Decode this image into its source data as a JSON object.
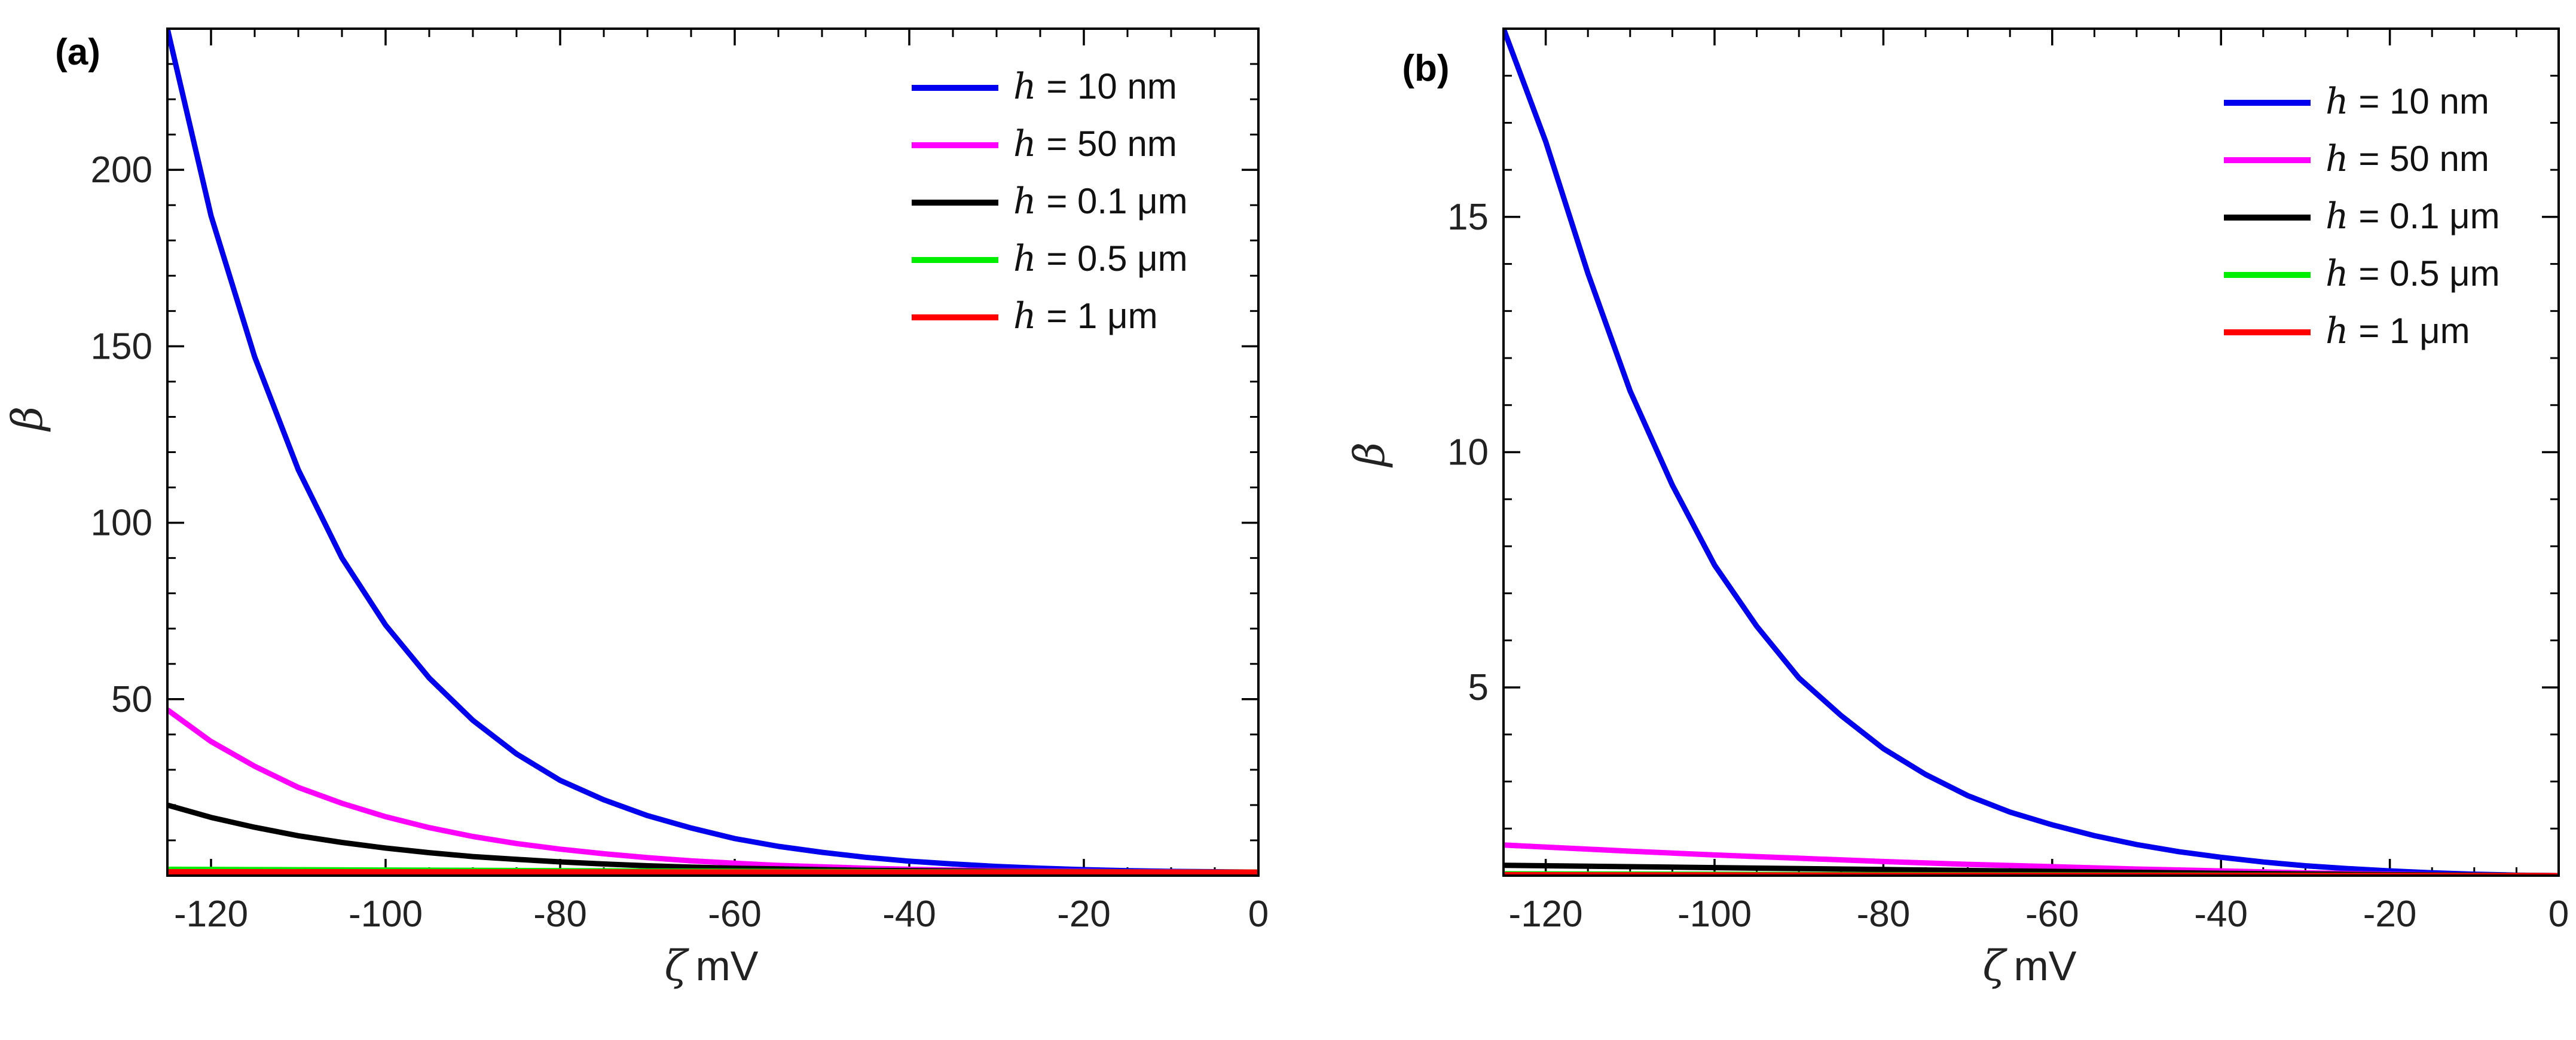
{
  "chart_data": [
    {
      "type": "line",
      "panel_label": "(a)",
      "xlabel": "mV",
      "xlabel_symbol": "ζ",
      "ylabel": "β",
      "xlim": [
        -125,
        0
      ],
      "ylim": [
        0,
        240
      ],
      "xticks": [
        -120,
        -100,
        -80,
        -60,
        -40,
        -20,
        0
      ],
      "yticks": [
        50,
        100,
        150,
        200
      ],
      "legend": "top-right",
      "series": [
        {
          "name": "h = 10 nm",
          "symbol": "h",
          "rest": " = 10 nm",
          "color": "#0000ee",
          "x": [
            -125,
            -120,
            -115,
            -110,
            -105,
            -100,
            -95,
            -90,
            -85,
            -80,
            -75,
            -70,
            -65,
            -60,
            -55,
            -50,
            -45,
            -40,
            -35,
            -30,
            -25,
            -20,
            -15,
            -10,
            -5,
            0
          ],
          "y": [
            240,
            187,
            147,
            115,
            90,
            71,
            56,
            44,
            34.5,
            27,
            21.5,
            17,
            13.5,
            10.5,
            8.3,
            6.6,
            5.2,
            4.1,
            3.3,
            2.6,
            2.1,
            1.7,
            1.4,
            1.2,
            1.1,
            1.0
          ]
        },
        {
          "name": "h = 50 nm",
          "symbol": "h",
          "rest": " = 50 nm",
          "color": "#ff00ff",
          "x": [
            -125,
            -120,
            -115,
            -110,
            -105,
            -100,
            -95,
            -90,
            -85,
            -80,
            -75,
            -70,
            -65,
            -60,
            -55,
            -50,
            -45,
            -40,
            -35,
            -30,
            -25,
            -20,
            -15,
            -10,
            -5,
            0
          ],
          "y": [
            47,
            38,
            31,
            25,
            20.5,
            16.7,
            13.6,
            11.1,
            9.1,
            7.5,
            6.2,
            5.1,
            4.2,
            3.5,
            2.9,
            2.5,
            2.1,
            1.8,
            1.6,
            1.4,
            1.3,
            1.2,
            1.1,
            1.05,
            1.0,
            1.0
          ]
        },
        {
          "name": "h = 0.1 μm",
          "symbol": "h",
          "rest": " = 0.1 μm",
          "color": "#000000",
          "x": [
            -125,
            -120,
            -115,
            -110,
            -105,
            -100,
            -95,
            -90,
            -85,
            -80,
            -75,
            -70,
            -65,
            -60,
            -55,
            -50,
            -45,
            -40,
            -35,
            -30,
            -25,
            -20,
            -15,
            -10,
            -5,
            0
          ],
          "y": [
            20,
            16.5,
            13.7,
            11.3,
            9.4,
            7.8,
            6.5,
            5.4,
            4.6,
            3.9,
            3.3,
            2.8,
            2.4,
            2.1,
            1.9,
            1.7,
            1.5,
            1.4,
            1.3,
            1.2,
            1.15,
            1.1,
            1.05,
            1.0,
            1.0,
            1.0
          ]
        },
        {
          "name": "h = 0.5 μm",
          "symbol": "h",
          "rest": " = 0.5 μm",
          "color": "#00ee00",
          "x": [
            -125,
            -100,
            -80,
            -60,
            -40,
            -20,
            0
          ],
          "y": [
            1.8,
            1.6,
            1.4,
            1.25,
            1.1,
            1.05,
            1.0
          ]
        },
        {
          "name": "h = 1 μm",
          "symbol": "h",
          "rest": " = 1 μm",
          "color": "#ff0000",
          "x": [
            -125,
            -100,
            -80,
            -60,
            -40,
            -20,
            0
          ],
          "y": [
            1.1,
            1.08,
            1.06,
            1.04,
            1.02,
            1.01,
            1.0
          ]
        }
      ]
    },
    {
      "type": "line",
      "panel_label": "(b)",
      "xlabel": "mV",
      "xlabel_symbol": "ζ",
      "ylabel": "β",
      "xlim": [
        -125,
        0
      ],
      "ylim": [
        1,
        19
      ],
      "xticks": [
        -120,
        -100,
        -80,
        -60,
        -40,
        -20,
        0
      ],
      "yticks": [
        5,
        10,
        15
      ],
      "legend": "top-right",
      "series": [
        {
          "name": "h = 10 nm",
          "symbol": "h",
          "rest": " = 10 nm",
          "color": "#0000ee",
          "x": [
            -125,
            -120,
            -115,
            -110,
            -105,
            -100,
            -95,
            -90,
            -85,
            -80,
            -75,
            -70,
            -65,
            -60,
            -55,
            -50,
            -45,
            -40,
            -35,
            -30,
            -25,
            -20,
            -15,
            -10,
            -5,
            0
          ],
          "y": [
            19,
            16.6,
            13.8,
            11.3,
            9.3,
            7.6,
            6.3,
            5.2,
            4.4,
            3.7,
            3.15,
            2.7,
            2.35,
            2.08,
            1.85,
            1.66,
            1.51,
            1.39,
            1.29,
            1.21,
            1.15,
            1.1,
            1.06,
            1.03,
            1.01,
            1.0
          ]
        },
        {
          "name": "h = 50 nm",
          "symbol": "h",
          "rest": " = 50 nm",
          "color": "#ff00ff",
          "x": [
            -125,
            -110,
            -100,
            -90,
            -80,
            -70,
            -60,
            -50,
            -40,
            -30,
            -20,
            -10,
            0
          ],
          "y": [
            1.65,
            1.52,
            1.44,
            1.37,
            1.3,
            1.24,
            1.19,
            1.14,
            1.1,
            1.06,
            1.03,
            1.01,
            1.0
          ]
        },
        {
          "name": "h = 0.1 μm",
          "symbol": "h",
          "rest": " = 0.1 μm",
          "color": "#000000",
          "x": [
            -125,
            -100,
            -80,
            -60,
            -40,
            -20,
            0
          ],
          "y": [
            1.22,
            1.17,
            1.13,
            1.09,
            1.05,
            1.02,
            1.0
          ]
        },
        {
          "name": "h = 0.5 μm",
          "symbol": "h",
          "rest": " = 0.5 μm",
          "color": "#00ee00",
          "x": [
            -125,
            -100,
            -80,
            -60,
            -40,
            -20,
            0
          ],
          "y": [
            1.04,
            1.03,
            1.02,
            1.015,
            1.01,
            1.005,
            1.0
          ]
        },
        {
          "name": "h = 1 μm",
          "symbol": "h",
          "rest": " = 1 μm",
          "color": "#ff0000",
          "x": [
            -125,
            -100,
            -80,
            -60,
            -40,
            -20,
            0
          ],
          "y": [
            1.02,
            1.015,
            1.01,
            1.008,
            1.005,
            1.002,
            1.0
          ]
        }
      ]
    }
  ]
}
